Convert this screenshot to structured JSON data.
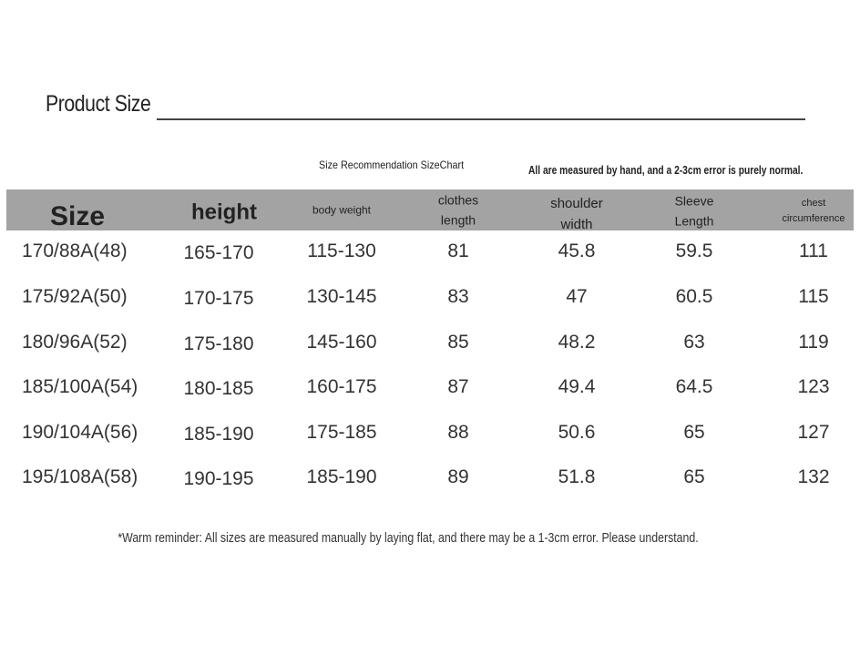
{
  "title": "Product Size",
  "subtitle": "Size Recommendation SizeChart",
  "note": "All are measured by hand, and a 2-3cm error is purely normal.",
  "table": {
    "headers": [
      "Size",
      "height",
      "body weight",
      "clothes length",
      "shoulder width",
      "Sleeve Length",
      "chest circumference"
    ],
    "rows": [
      [
        "170/88A(48)",
        "165-170",
        "115-130",
        "81",
        "45.8",
        "59.5",
        "111"
      ],
      [
        "175/92A(50)",
        "170-175",
        "130-145",
        "83",
        "47",
        "60.5",
        "115"
      ],
      [
        "180/96A(52)",
        "175-180",
        "145-160",
        "85",
        "48.2",
        "63",
        "119"
      ],
      [
        "185/100A(54)",
        "180-185",
        "160-175",
        "87",
        "49.4",
        "64.5",
        "123"
      ],
      [
        "190/104A(56)",
        "185-190",
        "175-185",
        "88",
        "50.6",
        "65",
        "127"
      ],
      [
        "195/108A(58)",
        "190-195",
        "185-190",
        "89",
        "51.8",
        "65",
        "132"
      ]
    ]
  },
  "footer": "*Warm reminder: All sizes are measured manually by laying flat, and there may be a 1-3cm error. Please understand."
}
